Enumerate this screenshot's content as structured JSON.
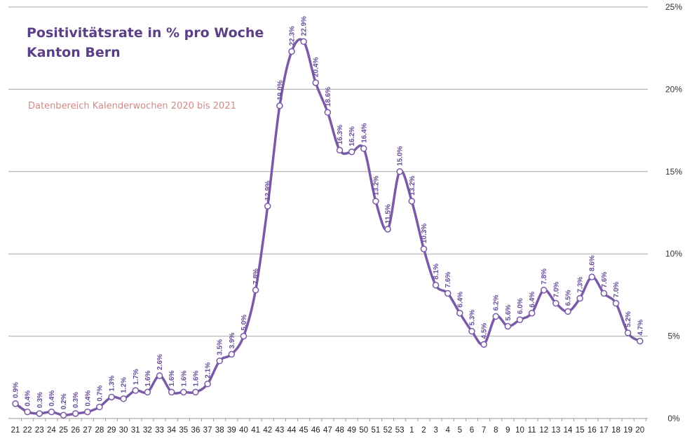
{
  "chart_data": {
    "type": "line",
    "title_line1": "Positivitätsrate in % pro Woche",
    "title_line2": "Kanton Bern",
    "subtitle": "Datenbereich Kalenderwochen 2020 bis 2021",
    "xlabel": "",
    "ylabel": "",
    "ylim": [
      0,
      25
    ],
    "yticks": [
      "0%",
      "5%",
      "10%",
      "15%",
      "20%",
      "25%"
    ],
    "y_axis_side": "right",
    "grid": true,
    "series": [
      {
        "name": "Positivitätsrate",
        "color": "#7a5aa6",
        "categories": [
          "21",
          "22",
          "23",
          "24",
          "25",
          "26",
          "27",
          "28",
          "29",
          "30",
          "31",
          "32",
          "33",
          "34",
          "35",
          "36",
          "37",
          "38",
          "39",
          "40",
          "41",
          "42",
          "43",
          "44",
          "45",
          "46",
          "47",
          "48",
          "49",
          "50",
          "51",
          "52",
          "53",
          "1",
          "2",
          "3",
          "4",
          "5",
          "6",
          "7",
          "8",
          "9",
          "10",
          "11",
          "12",
          "13",
          "14",
          "15",
          "16",
          "17",
          "18",
          "19",
          "20"
        ],
        "values": [
          0.9,
          0.4,
          0.3,
          0.4,
          0.2,
          0.3,
          0.4,
          0.7,
          1.3,
          1.2,
          1.7,
          1.6,
          2.6,
          1.6,
          1.6,
          1.6,
          2.1,
          3.5,
          3.9,
          5.0,
          7.8,
          12.9,
          19.0,
          22.3,
          22.9,
          20.4,
          18.6,
          16.3,
          16.2,
          16.4,
          13.2,
          11.5,
          15.0,
          13.2,
          10.3,
          8.1,
          7.6,
          6.4,
          5.3,
          4.5,
          6.2,
          5.6,
          6.0,
          6.4,
          7.8,
          7.0,
          6.5,
          7.3,
          8.6,
          7.6,
          7.0,
          5.2,
          4.7
        ],
        "labels": [
          "0.9%",
          "0.4%",
          "0.3%",
          "0.4%",
          "0.2%",
          "0.3%",
          "0.4%",
          "0.7%",
          "1.3%",
          "1.2%",
          "1.7%",
          "1.6%",
          "2.6%",
          "1.6%",
          "1.6%",
          "1.6%",
          "2.1%",
          "3.5%",
          "3.9%",
          "5.0%",
          "7.8%",
          "12.9%",
          "19.0%",
          "22.3%",
          "22.9%",
          "20.4%",
          "18.6%",
          "16.3%",
          "16.2%",
          "16.4%",
          "13.2%",
          "11.5%",
          "15.0%",
          "13.2%",
          "10.3%",
          "8.1%",
          "7.6%",
          "6.4%",
          "5.3%",
          "4.5%",
          "6.2%",
          "5.6%",
          "6.0%",
          "6.4%",
          "7.8%",
          "7.0%",
          "6.5%",
          "7.3%",
          "8.6%",
          "7.6%",
          "7.0%",
          "5.2%",
          "4.7%"
        ]
      }
    ]
  }
}
